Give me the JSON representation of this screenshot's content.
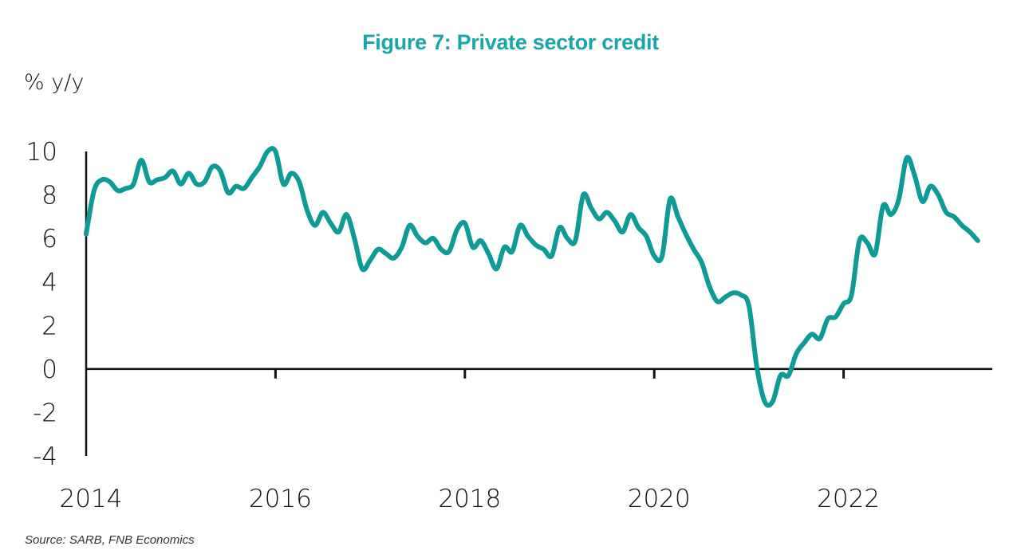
{
  "chart_data": {
    "type": "line",
    "title": "Figure 7: Private sector credit",
    "ylabel": "% y/y",
    "xlabel": "",
    "source": "Source: SARB, FNB Economics",
    "ylim": [
      -4,
      10
    ],
    "yticks": [
      10,
      8,
      6,
      4,
      2,
      0,
      -2,
      -4
    ],
    "xlim": [
      2014.0,
      2023.75
    ],
    "xticks": [
      2014,
      2016,
      2018,
      2020,
      2022
    ],
    "xtick_labels": [
      "2014",
      "2016",
      "2018",
      "2020",
      "2022"
    ],
    "grid": false,
    "legend": "none",
    "line_color": "#0e9a96",
    "series": [
      {
        "name": "Private sector credit",
        "frequency": "monthly",
        "start": "2014-01",
        "values": [
          6.2,
          8.2,
          8.7,
          8.6,
          8.2,
          8.3,
          8.5,
          9.6,
          8.6,
          8.7,
          8.8,
          9.1,
          8.5,
          9.0,
          8.5,
          8.6,
          9.3,
          9.1,
          8.1,
          8.4,
          8.3,
          8.8,
          9.3,
          10.0,
          10.0,
          8.5,
          9.0,
          8.6,
          7.3,
          6.6,
          7.2,
          6.7,
          6.3,
          7.1,
          6.0,
          4.6,
          5.0,
          5.5,
          5.3,
          5.1,
          5.6,
          6.6,
          6.1,
          5.8,
          6.0,
          5.5,
          5.4,
          6.4,
          6.7,
          5.6,
          5.9,
          5.3,
          4.6,
          5.6,
          5.4,
          6.6,
          6.1,
          5.7,
          5.5,
          5.2,
          6.5,
          6.0,
          5.9,
          8.0,
          7.4,
          6.9,
          7.2,
          6.8,
          6.3,
          7.1,
          6.5,
          6.1,
          5.2,
          5.2,
          7.8,
          7.0,
          6.2,
          5.5,
          4.9,
          3.8,
          3.1,
          3.3,
          3.5,
          3.4,
          2.9,
          0.1,
          -1.5,
          -1.5,
          -0.3,
          -0.3,
          0.7,
          1.2,
          1.6,
          1.4,
          2.3,
          2.4,
          3.0,
          3.4,
          5.9,
          5.8,
          5.3,
          7.5,
          7.1,
          7.8,
          9.7,
          8.9,
          7.7,
          8.4,
          8.0,
          7.2,
          7.0,
          6.6,
          6.3,
          5.9
        ]
      }
    ]
  }
}
